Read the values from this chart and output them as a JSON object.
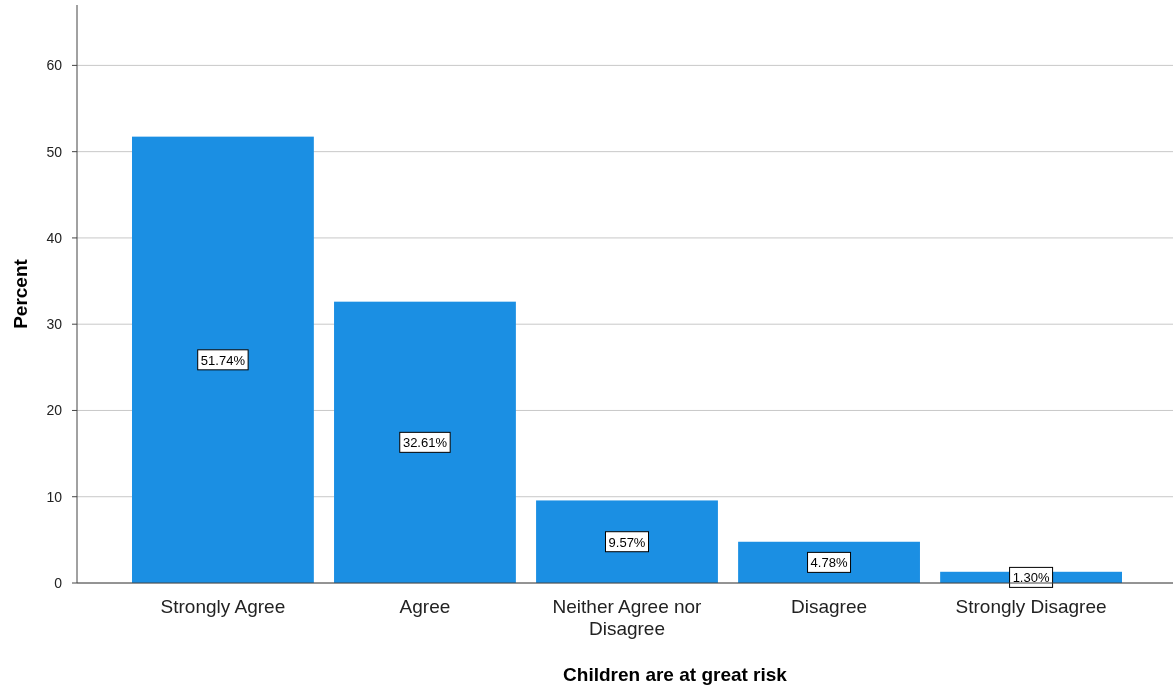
{
  "chart_data": {
    "type": "bar",
    "xlabel": "Children are at great risk",
    "ylabel": "Percent",
    "categories": [
      "Strongly Agree",
      "Agree",
      "Neither Agree nor Disagree",
      "Disagree",
      "Strongly Disagree"
    ],
    "values": [
      51.74,
      32.61,
      9.57,
      4.78,
      1.3
    ],
    "value_labels": [
      "51.74%",
      "32.61%",
      "9.57%",
      "4.78%",
      "1.30%"
    ],
    "color": "#1b8fe3",
    "ylim": [
      0,
      67
    ],
    "yticks": [
      0,
      10,
      20,
      30,
      40,
      50,
      60
    ],
    "grid": "y"
  }
}
